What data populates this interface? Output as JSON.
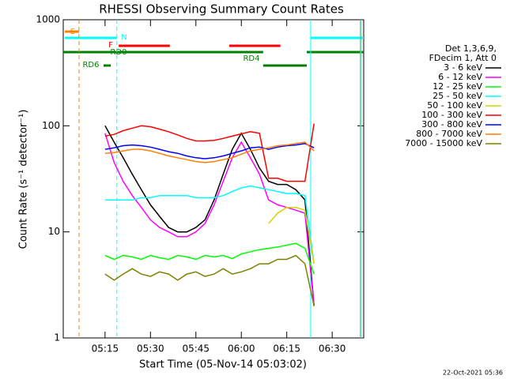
{
  "chart_data": {
    "type": "line",
    "title": "RHESSI Observing Summary Count Rates",
    "x_label": "Start Time (05-Nov-14 05:03:02)",
    "y_label": "Count Rate (s⁻¹ detector⁻¹)",
    "footer": "22-Oct-2021 05:36",
    "legend_title": [
      "Det 1,3,6,9,",
      "FDecim 1, Att 0"
    ],
    "log_y": true,
    "xlim": [
      1.2,
      100.4
    ],
    "xticks": [
      {
        "value": 15,
        "label": "05:15"
      },
      {
        "value": 30,
        "label": "05:30"
      },
      {
        "value": 45,
        "label": "05:45"
      },
      {
        "value": 60,
        "label": "06:00"
      },
      {
        "value": 75,
        "label": "06:15"
      },
      {
        "value": 90,
        "label": "06:30"
      }
    ],
    "ylim": [
      1,
      1000
    ],
    "yticks": [
      1,
      10,
      100,
      1000
    ],
    "x": [
      15,
      18,
      21,
      24,
      27,
      30,
      33,
      36,
      39,
      42,
      45,
      48,
      51,
      54,
      57,
      60,
      63,
      66,
      69,
      72,
      75,
      78,
      81,
      84
    ],
    "series": [
      {
        "name": "3 - 6 keV",
        "color": "#000000",
        "values": [
          100,
          70,
          50,
          35,
          25,
          18,
          14,
          11,
          10,
          10,
          11,
          13,
          20,
          35,
          60,
          85,
          60,
          40,
          30,
          28,
          28,
          25,
          20,
          2
        ]
      },
      {
        "name": "6 - 12 keV",
        "color": "#ff00ff",
        "values": [
          85,
          45,
          30,
          22,
          17,
          13,
          11,
          10,
          9,
          9,
          10,
          12,
          18,
          30,
          50,
          70,
          50,
          35,
          20,
          18,
          17,
          16,
          15,
          2
        ]
      },
      {
        "name": "12 - 25 keV",
        "color": "#00ff00",
        "values": [
          6,
          5.5,
          6,
          5.8,
          5.5,
          6,
          5.7,
          5.5,
          6,
          5.8,
          5.5,
          6,
          5.8,
          6,
          5.6,
          6.2,
          6.5,
          6.8,
          7,
          7.2,
          7.5,
          7.8,
          7,
          4
        ]
      },
      {
        "name": "25 - 50 keV",
        "color": "#00ffff",
        "values": [
          20,
          20,
          20,
          20,
          21,
          21,
          22,
          22,
          22,
          22,
          21,
          21,
          21,
          22,
          24,
          26,
          27,
          26,
          25,
          24,
          23,
          23,
          22,
          5
        ]
      },
      {
        "name": "50 - 100 keV",
        "color": "#d4d400",
        "values": [
          null,
          null,
          null,
          null,
          null,
          null,
          null,
          null,
          null,
          null,
          null,
          null,
          null,
          null,
          null,
          null,
          null,
          null,
          12,
          15,
          17,
          17,
          16,
          5
        ]
      },
      {
        "name": "100 - 300 keV",
        "color": "#ff0000",
        "values": [
          80,
          83,
          90,
          95,
          100,
          98,
          93,
          88,
          82,
          76,
          72,
          72,
          73,
          76,
          80,
          84,
          88,
          85,
          32,
          32,
          30,
          30,
          30,
          105
        ]
      },
      {
        "name": "300 - 800 keV",
        "color": "#0000ff",
        "values": [
          60,
          62,
          65,
          66,
          65,
          63,
          60,
          57,
          55,
          52,
          50,
          49,
          50,
          52,
          55,
          58,
          62,
          63,
          60,
          63,
          65,
          66,
          68,
          62
        ]
      },
      {
        "name": "800 - 7000 keV",
        "color": "#ff8000",
        "values": [
          55,
          56,
          58,
          60,
          60,
          58,
          55,
          52,
          50,
          48,
          46,
          45,
          46,
          48,
          50,
          54,
          58,
          60,
          62,
          65,
          66,
          68,
          70,
          58
        ]
      },
      {
        "name": "7000 - 15000 keV",
        "color": "#808000",
        "values": [
          4,
          3.5,
          4,
          4.5,
          4,
          3.8,
          4.2,
          4,
          3.5,
          4,
          4.2,
          3.8,
          4,
          4.5,
          4,
          4.2,
          4.5,
          5,
          5,
          5.5,
          5.5,
          6,
          5,
          2
        ]
      }
    ],
    "flags": [
      {
        "label": "S",
        "color": "#ff8000",
        "segments": [
          [
            1.7,
            6.4
          ]
        ]
      },
      {
        "label": "N",
        "color": "#00ffff",
        "segments": [
          [
            1.7,
            18.9
          ],
          [
            82.9,
            100.4
          ]
        ]
      },
      {
        "label": "F",
        "color": "#ff0000",
        "segments": [
          [
            19.5,
            36.4
          ],
          [
            56.0,
            72.9
          ]
        ]
      },
      {
        "label": "RD0",
        "color": "#008000",
        "segments": [
          [
            1.2,
            67.2
          ],
          [
            81.6,
            100.4
          ]
        ]
      },
      {
        "label": "RD4",
        "color": "#008000",
        "segments": [
          [
            67.2,
            81.6
          ]
        ]
      },
      {
        "label": "RD6",
        "color": "#008000",
        "segments": [
          [
            14.5,
            16.9
          ]
        ]
      }
    ],
    "markers": [
      {
        "x": 6.4,
        "color": "#ff8000",
        "dashed": true
      },
      {
        "x": 18.9,
        "color": "#00ffff",
        "dashed": true
      },
      {
        "x": 82.9,
        "color": "#00ffff",
        "dashed": false
      },
      {
        "x": 99.6,
        "color": "#00ffff",
        "dashed": false
      },
      {
        "x": 99.3,
        "color": "#ff8000",
        "dashed": false
      }
    ]
  }
}
